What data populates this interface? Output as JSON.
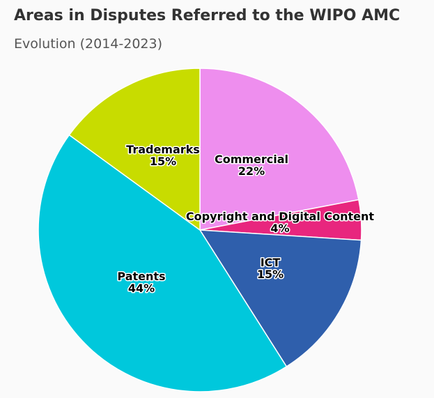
{
  "chart_data": {
    "type": "pie",
    "title": "Areas in Disputes Referred to the WIPO AMC",
    "subtitle": "Evolution (2014-2023)",
    "slices": [
      {
        "label": "Commercial",
        "value": 22,
        "value_label": "22%",
        "color": "#ee8eee"
      },
      {
        "label": "Copyright and Digital Content",
        "value": 4,
        "value_label": "4%",
        "color": "#e8267e"
      },
      {
        "label": "ICT",
        "value": 15,
        "value_label": "15%",
        "color": "#2f5fac"
      },
      {
        "label": "Patents",
        "value": 44,
        "value_label": "44%",
        "color": "#00c8dc"
      },
      {
        "label": "Trademarks",
        "value": 15,
        "value_label": "15%",
        "color": "#c8dc00"
      }
    ]
  }
}
